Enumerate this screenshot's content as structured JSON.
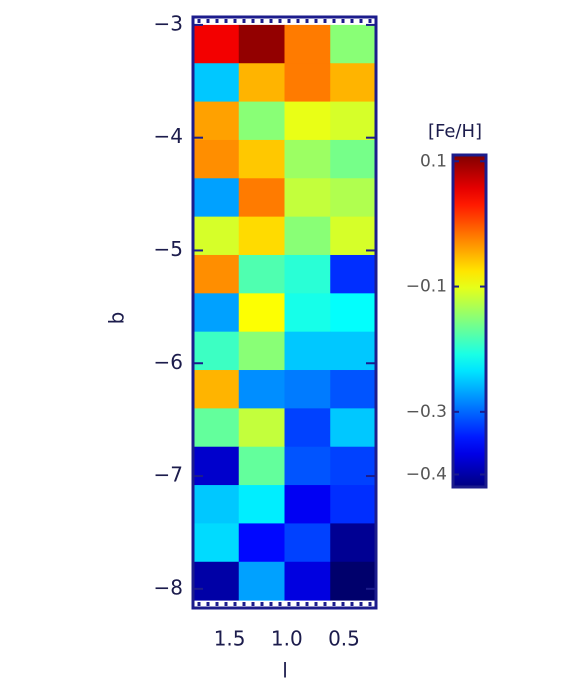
{
  "chart_data": {
    "type": "heatmap",
    "x_label": "l",
    "y_label": "b",
    "colorbar_label": "[Fe/H]",
    "colormap": "jet",
    "xbins": [
      1.82,
      1.42,
      1.02,
      0.62,
      0.22
    ],
    "ybins": [
      -3.0,
      -3.34,
      -3.68,
      -4.02,
      -4.36,
      -4.7,
      -5.04,
      -5.38,
      -5.72,
      -6.06,
      -6.4,
      -6.74,
      -7.08,
      -7.42,
      -7.76,
      -8.1
    ],
    "xlim": [
      1.82,
      0.22
    ],
    "ylim": [
      -8.17,
      -2.93
    ],
    "xticks": [
      1.5,
      {
        "value": 1.0,
        "label": "1.0"
      },
      0.5
    ],
    "yticks": [
      {
        "value": -3,
        "label": "−3"
      },
      {
        "value": -4,
        "label": "−4"
      },
      {
        "value": -5,
        "label": "−5"
      },
      {
        "value": -6,
        "label": "−6"
      },
      {
        "value": -7,
        "label": "−7"
      },
      {
        "value": -8,
        "label": "−8"
      }
    ],
    "clim": [
      -0.42,
      0.11
    ],
    "cticks": [
      0.1,
      {
        "value": -0.1,
        "label": "−0.1"
      },
      {
        "value": -0.3,
        "label": "−0.3"
      },
      {
        "value": -0.4,
        "label": "−0.4"
      }
    ],
    "z": [
      [
        0.05,
        0.1,
        -0.02,
        -0.15
      ],
      [
        -0.25,
        -0.05,
        -0.02,
        -0.05
      ],
      [
        -0.04,
        -0.15,
        -0.1,
        -0.11
      ],
      [
        -0.03,
        -0.06,
        -0.14,
        -0.16
      ],
      [
        -0.27,
        -0.02,
        -0.12,
        -0.13
      ],
      [
        -0.11,
        -0.07,
        -0.15,
        -0.11
      ],
      [
        -0.03,
        -0.18,
        -0.2,
        -0.33
      ],
      [
        -0.27,
        -0.09,
        -0.21,
        -0.22
      ],
      [
        -0.19,
        -0.15,
        -0.25,
        -0.25
      ],
      [
        -0.05,
        -0.28,
        -0.29,
        -0.31
      ],
      [
        -0.17,
        -0.12,
        -0.32,
        -0.25
      ],
      [
        -0.38,
        -0.17,
        -0.31,
        -0.32
      ],
      [
        -0.25,
        -0.23,
        -0.36,
        -0.33
      ],
      [
        -0.24,
        -0.35,
        -0.32,
        -0.41
      ],
      [
        -0.4,
        -0.27,
        -0.37,
        -0.43
      ]
    ]
  }
}
